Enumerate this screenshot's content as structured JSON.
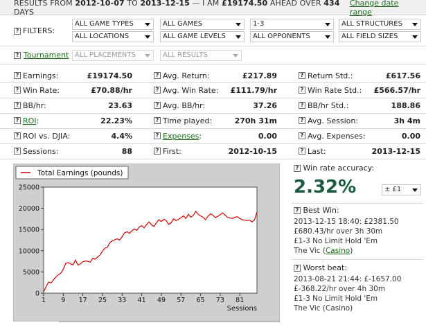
{
  "header": {
    "results_prefix": "RESULTS FROM ",
    "date_from": "2012-10-07",
    "to_word": " TO ",
    "date_to": "2013-12-15",
    "mid": " — I AM ",
    "ahead_amount": "£19174.50",
    "ahead_word": " AHEAD OVER ",
    "days": "434",
    "days_word": " DAYS",
    "change_date_range": "Change date range"
  },
  "filters": {
    "label": "FILTERS:",
    "game_types": "ALL GAME TYPES",
    "games": "ALL GAMES",
    "stakes": "1-3",
    "structures": "ALL STRUCTURES",
    "locations": "ALL LOCATIONS",
    "game_levels": "ALL GAME LEVELS",
    "opponents": "ALL OPPONENTS",
    "field_sizes": "ALL FIELD SIZES"
  },
  "tournament": {
    "label": "Tournament",
    "colon": ":",
    "placements": "ALL PLACEMENTS",
    "results": "ALL RESULTS"
  },
  "stats": {
    "earnings": {
      "label": "Earnings:",
      "value": "£19174.50"
    },
    "avg_return": {
      "label": "Avg. Return:",
      "value": "£217.89"
    },
    "return_std": {
      "label": "Return Std.:",
      "value": "£617.56"
    },
    "win_rate": {
      "label": "Win Rate:",
      "value": "£70.88/hr"
    },
    "avg_win_rate": {
      "label": "Avg. Win Rate:",
      "value": "£111.79/hr"
    },
    "win_rate_std": {
      "label": "Win Rate Std.:",
      "value": "£566.57/hr"
    },
    "bb_hr": {
      "label": "BB/hr:",
      "value": "23.63"
    },
    "avg_bb_hr": {
      "label": "Avg. BB/hr:",
      "value": "37.26"
    },
    "bb_hr_std": {
      "label": "BB/hr Std.:",
      "value": "188.86"
    },
    "roi": {
      "label": "ROI",
      "colon": ":",
      "value": "22.23%"
    },
    "time_played": {
      "label": "Time played:",
      "value": "270h 31m"
    },
    "avg_session": {
      "label": "Avg. Session:",
      "value": "3h 4m"
    },
    "roi_djia": {
      "label": "ROI vs. DJIA:",
      "value": "4.4%"
    },
    "expenses": {
      "label": "Expenses",
      "colon": ":",
      "value": "0.00"
    },
    "avg_expenses": {
      "label": "Avg. Expenses:",
      "value": "0.00"
    },
    "sessions": {
      "label": "Sessions:",
      "value": "88"
    },
    "first": {
      "label": "First:",
      "value": "2012-10-15"
    },
    "last": {
      "label": "Last:",
      "value": "2013-12-15"
    }
  },
  "side": {
    "win_rate_accuracy_label": "Win rate accuracy:",
    "accuracy": "2.32%",
    "accuracy_unit": "± £1",
    "best_win_label": "Best Win:",
    "best_win_line1": "2013-12-15 18:40: £2381.50",
    "best_win_line2": "£680.43/hr over 3h 30m",
    "best_win_line3": "£1-3 No Limit Hold 'Em",
    "best_win_venue": "The Vic (",
    "best_win_venue_link": "Casino",
    "best_win_venue_end": ")",
    "worst_beat_label": "Worst beat:",
    "worst_beat_line1": "2013-08-21 21:44: £-1657.00",
    "worst_beat_line2": "£-368.22/hr over 4h 30m",
    "worst_beat_line3": "£1-3 No Limit Hold 'Em",
    "worst_beat_line4": "The Vic (Casino)"
  },
  "colors": {
    "line": "#cc0000",
    "link": "#1a6e1a",
    "accuracy": "#1c5b3d"
  },
  "chart_data": {
    "type": "line",
    "title": "",
    "xlabel": "Sessions",
    "ylabel": "",
    "xlim": [
      1,
      88
    ],
    "ylim": [
      0,
      25000
    ],
    "x_ticks": [
      1,
      9,
      17,
      25,
      33,
      41,
      49,
      57,
      65,
      73,
      81
    ],
    "y_ticks": [
      0,
      5000,
      10000,
      15000,
      20000,
      25000
    ],
    "grid": false,
    "legend_position": "top-left",
    "series": [
      {
        "name": "Total Earnings (pounds)",
        "x": [
          1,
          2,
          3,
          4,
          5,
          6,
          7,
          8,
          9,
          10,
          11,
          12,
          13,
          14,
          15,
          16,
          17,
          18,
          19,
          20,
          21,
          22,
          23,
          24,
          25,
          26,
          27,
          28,
          29,
          30,
          31,
          32,
          33,
          34,
          35,
          36,
          37,
          38,
          39,
          40,
          41,
          42,
          43,
          44,
          45,
          46,
          47,
          48,
          49,
          50,
          51,
          52,
          53,
          54,
          55,
          56,
          57,
          58,
          59,
          60,
          61,
          62,
          63,
          64,
          65,
          66,
          67,
          68,
          69,
          70,
          71,
          72,
          73,
          74,
          75,
          76,
          77,
          78,
          79,
          80,
          81,
          82,
          83,
          84,
          85,
          86,
          87,
          88
        ],
        "values": [
          300,
          1500,
          2600,
          2400,
          3100,
          3800,
          4300,
          4700,
          5600,
          7000,
          7200,
          6900,
          6700,
          7800,
          6600,
          6900,
          7400,
          7600,
          7500,
          7300,
          8200,
          8000,
          8500,
          9000,
          9900,
          10600,
          10800,
          11900,
          12300,
          12600,
          12800,
          12500,
          13300,
          14200,
          14500,
          14100,
          14700,
          15100,
          14800,
          15600,
          15900,
          15400,
          16200,
          16800,
          16100,
          15700,
          16600,
          17300,
          16900,
          17400,
          17100,
          16200,
          16600,
          17500,
          17100,
          17400,
          17800,
          18200,
          17600,
          18600,
          17900,
          18300,
          19300,
          18600,
          18200,
          17900,
          17300,
          18100,
          18700,
          18400,
          17800,
          18100,
          18500,
          18900,
          18400,
          17900,
          17700,
          17600,
          17900,
          18000,
          17600,
          17300,
          17200,
          17100,
          17200,
          16800,
          17300,
          19100
        ]
      }
    ]
  }
}
